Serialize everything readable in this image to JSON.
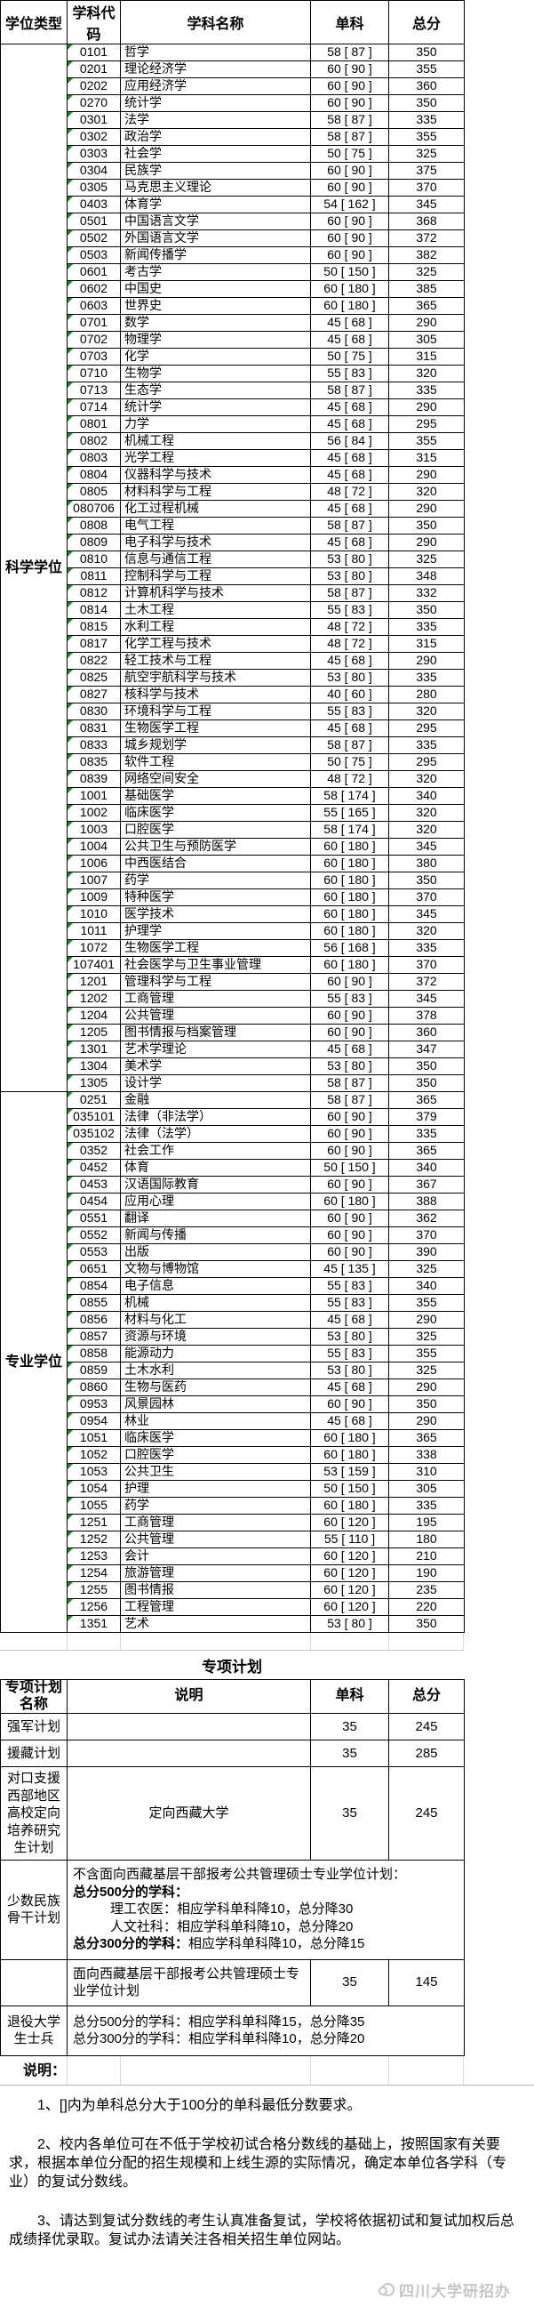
{
  "colors": {
    "triangle_green": "#1e8a1e",
    "watermark_gray": "#c6c6c6"
  },
  "main_table": {
    "headers": [
      "学位类型",
      "学科代码",
      "学科名称",
      "单科",
      "总分"
    ],
    "sections": [
      {
        "type": "科学学位",
        "rows": [
          [
            "0101",
            "哲学",
            "58 [ 87 ]",
            "350"
          ],
          [
            "0201",
            "理论经济学",
            "60 [ 90 ]",
            "355"
          ],
          [
            "0202",
            "应用经济学",
            "60 [ 90 ]",
            "360"
          ],
          [
            "0270",
            "统计学",
            "60 [ 90 ]",
            "350"
          ],
          [
            "0301",
            "法学",
            "58 [ 87 ]",
            "335"
          ],
          [
            "0302",
            "政治学",
            "58 [ 87 ]",
            "355"
          ],
          [
            "0303",
            "社会学",
            "50 [ 75 ]",
            "325"
          ],
          [
            "0304",
            "民族学",
            "60 [ 90 ]",
            "375"
          ],
          [
            "0305",
            "马克思主义理论",
            "60 [ 90 ]",
            "370"
          ],
          [
            "0403",
            "体育学",
            "54 [ 162 ]",
            "345"
          ],
          [
            "0501",
            "中国语言文学",
            "60 [ 90 ]",
            "368"
          ],
          [
            "0502",
            "外国语言文学",
            "60 [ 90 ]",
            "372"
          ],
          [
            "0503",
            "新闻传播学",
            "60 [ 90 ]",
            "382"
          ],
          [
            "0601",
            "考古学",
            "50 [ 150 ]",
            "325"
          ],
          [
            "0602",
            "中国史",
            "60 [ 180 ]",
            "385"
          ],
          [
            "0603",
            "世界史",
            "60 [ 180 ]",
            "365"
          ],
          [
            "0701",
            "数学",
            "45 [ 68 ]",
            "290"
          ],
          [
            "0702",
            "物理学",
            "45 [ 68 ]",
            "305"
          ],
          [
            "0703",
            "化学",
            "50 [ 75 ]",
            "315"
          ],
          [
            "0710",
            "生物学",
            "55 [ 83 ]",
            "320"
          ],
          [
            "0713",
            "生态学",
            "58 [ 87 ]",
            "335"
          ],
          [
            "0714",
            "统计学",
            "45 [ 68 ]",
            "290"
          ],
          [
            "0801",
            "力学",
            "45 [ 68 ]",
            "295"
          ],
          [
            "0802",
            "机械工程",
            "56 [ 84 ]",
            "355"
          ],
          [
            "0803",
            "光学工程",
            "45 [ 68 ]",
            "315"
          ],
          [
            "0804",
            "仪器科学与技术",
            "45 [ 68 ]",
            "290"
          ],
          [
            "0805",
            "材料科学与工程",
            "48 [ 72 ]",
            "320"
          ],
          [
            "080706",
            "化工过程机械",
            "45 [ 68 ]",
            "290"
          ],
          [
            "0808",
            "电气工程",
            "58 [ 87 ]",
            "350"
          ],
          [
            "0809",
            "电子科学与技术",
            "45 [ 68 ]",
            "290"
          ],
          [
            "0810",
            "信息与通信工程",
            "53 [ 80 ]",
            "325"
          ],
          [
            "0811",
            "控制科学与工程",
            "53 [ 80 ]",
            "348"
          ],
          [
            "0812",
            "计算机科学与技术",
            "58 [ 87 ]",
            "332"
          ],
          [
            "0814",
            "土木工程",
            "55 [ 83 ]",
            "350"
          ],
          [
            "0815",
            "水利工程",
            "48 [ 72 ]",
            "335"
          ],
          [
            "0817",
            "化学工程与技术",
            "48 [ 72 ]",
            "315"
          ],
          [
            "0822",
            "轻工技术与工程",
            "45 [ 68 ]",
            "290"
          ],
          [
            "0825",
            "航空宇航科学与技术",
            "53 [ 80 ]",
            "335"
          ],
          [
            "0827",
            "核科学与技术",
            "40 [ 60 ]",
            "280"
          ],
          [
            "0830",
            "环境科学与工程",
            "55 [ 83 ]",
            "320"
          ],
          [
            "0831",
            "生物医学工程",
            "45 [ 68 ]",
            "295"
          ],
          [
            "0833",
            "城乡规划学",
            "58 [ 87 ]",
            "335"
          ],
          [
            "0835",
            "软件工程",
            "50 [ 75 ]",
            "295"
          ],
          [
            "0839",
            "网络空间安全",
            "48 [ 72 ]",
            "320"
          ],
          [
            "1001",
            "基础医学",
            "58 [ 174 ]",
            "340"
          ],
          [
            "1002",
            "临床医学",
            "55 [ 165 ]",
            "320"
          ],
          [
            "1003",
            "口腔医学",
            "58 [ 174 ]",
            "320"
          ],
          [
            "1004",
            "公共卫生与预防医学",
            "60 [ 180 ]",
            "345"
          ],
          [
            "1006",
            "中西医结合",
            "60 [ 180 ]",
            "380"
          ],
          [
            "1007",
            "药学",
            "60 [ 180 ]",
            "350"
          ],
          [
            "1009",
            "特种医学",
            "60 [ 180 ]",
            "370"
          ],
          [
            "1010",
            "医学技术",
            "60 [ 180 ]",
            "345"
          ],
          [
            "1011",
            "护理学",
            "60 [ 180 ]",
            "320"
          ],
          [
            "1072",
            "生物医学工程",
            "56 [ 168 ]",
            "335"
          ],
          [
            "107401",
            "社会医学与卫生事业管理",
            "60 [ 180 ]",
            "370"
          ],
          [
            "1201",
            "管理科学与工程",
            "60 [ 90 ]",
            "372"
          ],
          [
            "1202",
            "工商管理",
            "55 [ 83 ]",
            "345"
          ],
          [
            "1204",
            "公共管理",
            "60 [ 90 ]",
            "378"
          ],
          [
            "1205",
            "图书情报与档案管理",
            "60 [ 90 ]",
            "360"
          ],
          [
            "1301",
            "艺术学理论",
            "45 [ 68 ]",
            "347"
          ],
          [
            "1304",
            "美术学",
            "53 [ 80 ]",
            "350"
          ],
          [
            "1305",
            "设计学",
            "58 [ 87 ]",
            "350"
          ]
        ]
      },
      {
        "type": "专业学位",
        "rows": [
          [
            "0251",
            "金融",
            "58 [ 87 ]",
            "365"
          ],
          [
            "035101",
            "法律（非法学）",
            "60 [ 90 ]",
            "379"
          ],
          [
            "035102",
            "法律（法学）",
            "60 [ 90 ]",
            "335"
          ],
          [
            "0352",
            "社会工作",
            "60 [ 90 ]",
            "365"
          ],
          [
            "0452",
            "体育",
            "50 [ 150 ]",
            "340"
          ],
          [
            "0453",
            "汉语国际教育",
            "60 [ 90 ]",
            "367"
          ],
          [
            "0454",
            "应用心理",
            "60 [ 180 ]",
            "388"
          ],
          [
            "0551",
            "翻译",
            "60 [ 90 ]",
            "362"
          ],
          [
            "0552",
            "新闻与传播",
            "60 [ 90 ]",
            "370"
          ],
          [
            "0553",
            "出版",
            "60 [ 90 ]",
            "390"
          ],
          [
            "0651",
            "文物与博物馆",
            "45 [ 135 ]",
            "325"
          ],
          [
            "0854",
            "电子信息",
            "55 [ 83 ]",
            "340"
          ],
          [
            "0855",
            "机械",
            "55 [ 83 ]",
            "355"
          ],
          [
            "0856",
            "材料与化工",
            "45 [ 68 ]",
            "290"
          ],
          [
            "0857",
            "资源与环境",
            "53 [ 80 ]",
            "325"
          ],
          [
            "0858",
            "能源动力",
            "55 [ 83 ]",
            "355"
          ],
          [
            "0859",
            "土木水利",
            "53 [ 80 ]",
            "325"
          ],
          [
            "0860",
            "生物与医药",
            "45 [ 68 ]",
            "290"
          ],
          [
            "0953",
            "风景园林",
            "60 [ 90 ]",
            "350"
          ],
          [
            "0954",
            "林业",
            "45 [ 68 ]",
            "290"
          ],
          [
            "1051",
            "临床医学",
            "60 [ 180 ]",
            "365"
          ],
          [
            "1052",
            "口腔医学",
            "60 [ 180 ]",
            "338"
          ],
          [
            "1053",
            "公共卫生",
            "53 [ 159 ]",
            "310"
          ],
          [
            "1054",
            "护理",
            "50 [ 150 ]",
            "305"
          ],
          [
            "1055",
            "药学",
            "60 [ 180 ]",
            "335"
          ],
          [
            "1251",
            "工商管理",
            "60 [ 120 ]",
            "195"
          ],
          [
            "1252",
            "公共管理",
            "55 [ 110 ]",
            "180"
          ],
          [
            "1253",
            "会计",
            "60 [ 120 ]",
            "210"
          ],
          [
            "1254",
            "旅游管理",
            "60 [ 120 ]",
            "190"
          ],
          [
            "1255",
            "图书情报",
            "60 [ 120 ]",
            "235"
          ],
          [
            "1256",
            "工程管理",
            "60 [ 120 ]",
            "220"
          ],
          [
            "1351",
            "艺术",
            "53 [ 80 ]",
            "350"
          ]
        ]
      }
    ]
  },
  "special_table": {
    "title": "专项计划",
    "headers": [
      "专项计划名称",
      "说明",
      "单科",
      "总分"
    ],
    "rows": [
      {
        "name": "强军计划",
        "desc": [],
        "danke": "35",
        "zongfen": "245",
        "span": false,
        "center": false
      },
      {
        "name": "援藏计划",
        "desc": [],
        "danke": "35",
        "zongfen": "285",
        "span": false,
        "center": false
      },
      {
        "name": "对口支援西部地区高校定向培养研究生计划",
        "desc": [
          {
            "b": "",
            "t": "定向西藏大学",
            "in": 0
          }
        ],
        "danke": "35",
        "zongfen": "245",
        "span": false,
        "center": true
      },
      {
        "name": "少数民族骨干计划",
        "desc": [
          {
            "b": "",
            "t": "不含面向西藏基层干部报考公共管理硕士专业学位计划：",
            "in": 0
          },
          {
            "b": "总分500分的学科：",
            "t": "",
            "in": 0
          },
          {
            "b": "",
            "t": "理工农医：相应学科单科降10，总分降30",
            "in": 1
          },
          {
            "b": "",
            "t": "人文社科：相应学科单科降10，总分降20",
            "in": 1
          },
          {
            "b": "总分300分的学科：",
            "t": "相应学科单科降10，总分降15",
            "in": 0
          }
        ],
        "danke": "",
        "zongfen": "",
        "span": true,
        "center": false
      },
      {
        "name": "",
        "desc": [
          {
            "b": "",
            "t": "面向西藏基层干部报考公共管理硕士专业学位计划",
            "in": 0
          }
        ],
        "danke": "35",
        "zongfen": "145",
        "span": false,
        "center": false
      },
      {
        "name": "退役大学生士兵",
        "desc": [
          {
            "b": "",
            "t": "总分500分的学科：相应学科单科降15，总分降35",
            "in": 0
          },
          {
            "b": "",
            "t": "总分300分的学科：相应学科单科降10，总分降20",
            "in": 0
          }
        ],
        "danke": "",
        "zongfen": "",
        "span": true,
        "center": false
      }
    ]
  },
  "notes": {
    "label": "说明：",
    "items": [
      "1、[]内为单科总分大于100分的单科最低分数要求。",
      "2、校内各单位可在不低于学校初试合格分数线的基础上，按照国家有关要求，根据本单位分配的招生规模和上线生源的实际情况，确定本单位各学科（专业）的复试分数线。",
      "3、请达到复试分数线的考生认真准备复试，学校将依据初试和复试加权后总成绩择优录取。复试办法请关注各相关招生单位网站。"
    ]
  },
  "watermark": "四川大学研招办"
}
